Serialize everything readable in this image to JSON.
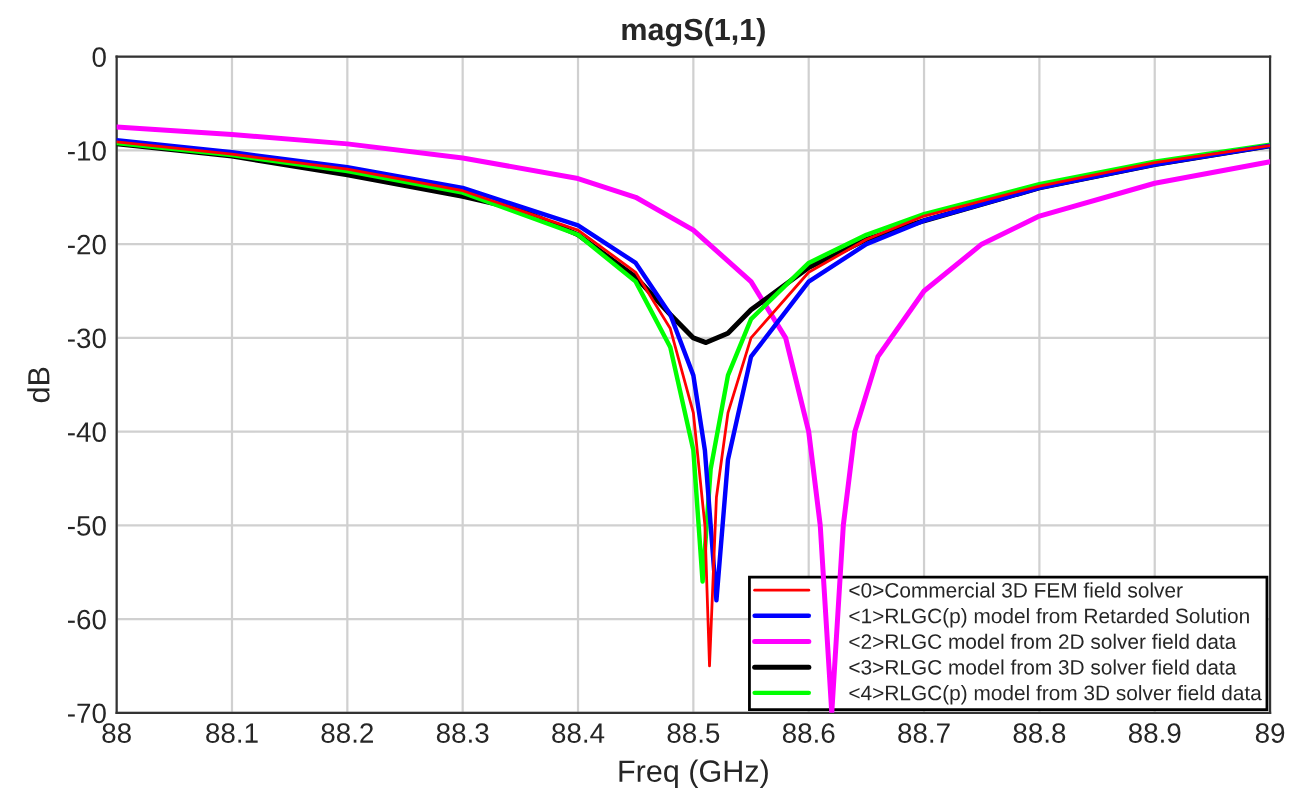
{
  "chart_data": {
    "type": "line",
    "title": "magS(1,1)",
    "xlabel": "Freq (GHz)",
    "ylabel": "dB",
    "xlim": [
      88,
      89
    ],
    "ylim": [
      -70,
      0
    ],
    "xticks": [
      88,
      88.1,
      88.2,
      88.3,
      88.4,
      88.5,
      88.6,
      88.7,
      88.8,
      88.9,
      89
    ],
    "yticks": [
      -70,
      -60,
      -50,
      -40,
      -30,
      -20,
      -10,
      0
    ],
    "grid": true,
    "legend": "bottom right",
    "marker": "none",
    "line_style": "solid",
    "series": [
      {
        "name": "<0>Commercial 3D FEM field solver",
        "color": "#ff0000",
        "x": [
          88,
          88.1,
          88.2,
          88.3,
          88.4,
          88.45,
          88.48,
          88.5,
          88.51,
          88.514,
          88.52,
          88.53,
          88.55,
          88.6,
          88.65,
          88.7,
          88.8,
          88.9,
          89
        ],
        "values": [
          -9.1,
          -10.4,
          -12,
          -14.3,
          -18.5,
          -23,
          -29,
          -38,
          -50,
          -65,
          -47,
          -38,
          -30,
          -23,
          -19.5,
          -17,
          -13.8,
          -11.3,
          -9.5
        ]
      },
      {
        "name": "<1>RLGC(p) model from Retarded Solution",
        "color": "#0000ff",
        "x": [
          88,
          88.1,
          88.2,
          88.3,
          88.4,
          88.45,
          88.48,
          88.5,
          88.51,
          88.52,
          88.53,
          88.55,
          88.6,
          88.65,
          88.7,
          88.8,
          88.9,
          89
        ],
        "values": [
          -8.9,
          -10.2,
          -11.8,
          -14,
          -18,
          -22,
          -27.5,
          -34,
          -42,
          -58,
          -43,
          -32,
          -24,
          -20,
          -17.5,
          -14,
          -11.5,
          -9.5
        ]
      },
      {
        "name": "<2>RLGC model from 2D solver field data",
        "color": "#ff00ff",
        "x": [
          88,
          88.1,
          88.2,
          88.3,
          88.4,
          88.45,
          88.5,
          88.55,
          88.58,
          88.6,
          88.61,
          88.62,
          88.63,
          88.64,
          88.66,
          88.7,
          88.75,
          88.8,
          88.9,
          89
        ],
        "values": [
          -7.5,
          -8.3,
          -9.3,
          -10.8,
          -13,
          -15,
          -18.5,
          -24,
          -30,
          -40,
          -50,
          -70,
          -50,
          -40,
          -32,
          -25,
          -20,
          -17,
          -13.5,
          -11.2
        ]
      },
      {
        "name": "<3>RLGC model from 3D solver field data",
        "color": "#000000",
        "x": [
          88,
          88.1,
          88.2,
          88.3,
          88.35,
          88.4,
          88.45,
          88.48,
          88.5,
          88.511,
          88.53,
          88.55,
          88.6,
          88.65,
          88.7,
          88.8,
          88.9,
          89
        ],
        "values": [
          -9.3,
          -10.6,
          -12.6,
          -14.9,
          -16.3,
          -19,
          -23.5,
          -27.5,
          -30,
          -30.5,
          -29.5,
          -27,
          -22.5,
          -19.5,
          -17.5,
          -14,
          -11.5,
          -9.5
        ]
      },
      {
        "name": "<4>RLGC(p) model from 3D solver field data",
        "color": "#00ff00",
        "x": [
          88,
          88.1,
          88.2,
          88.3,
          88.4,
          88.45,
          88.48,
          88.5,
          88.508,
          88.515,
          88.53,
          88.55,
          88.6,
          88.65,
          88.7,
          88.8,
          88.9,
          89
        ],
        "values": [
          -9.2,
          -10.5,
          -12.2,
          -14.5,
          -19,
          -24,
          -31,
          -42,
          -56,
          -44,
          -34,
          -28,
          -22,
          -19,
          -16.8,
          -13.6,
          -11.2,
          -9.4
        ]
      }
    ]
  }
}
